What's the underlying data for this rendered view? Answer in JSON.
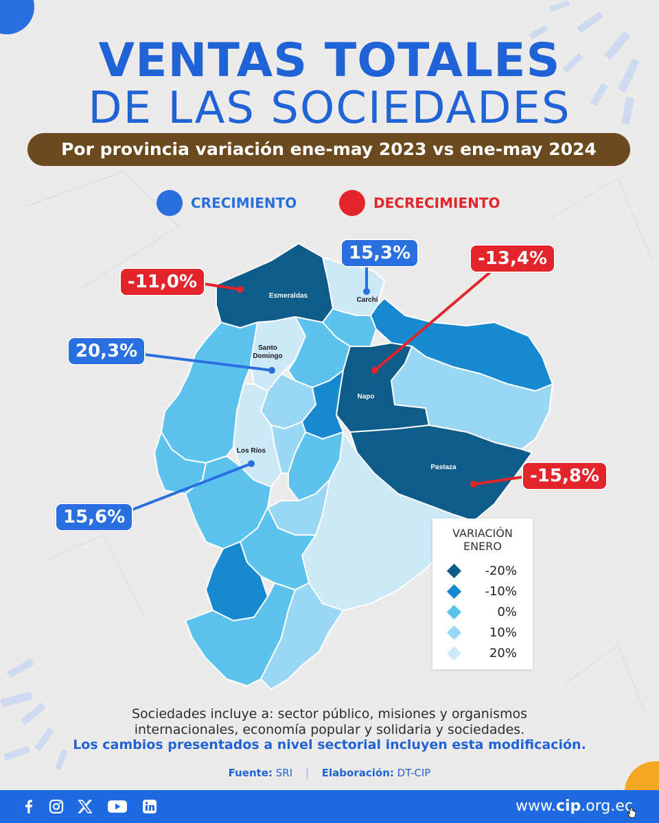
{
  "title": {
    "line1": "VENTAS TOTALES",
    "line2": "DE LAS SOCIEDADES",
    "subtitle": "Por provincia variación ene-may 2023 vs ene-may 2024"
  },
  "legend_top": {
    "growth": {
      "label": "CRECIMIENTO",
      "color": "#2a6fe0"
    },
    "decline": {
      "label": "DECRECIMIENTO",
      "color": "#e3242b"
    }
  },
  "map_labels": {
    "esmeraldas": "Esmeraldas",
    "carchi": "Carchi",
    "santo_domingo_1": "Santo",
    "santo_domingo_2": "Domingo",
    "napo": "Napo",
    "pastaza": "Pastaza",
    "los_rios": "Los Ríos"
  },
  "callouts": {
    "esmeraldas": {
      "province": "Esmeraldas",
      "value": "-11,0%",
      "trend": "decline"
    },
    "carchi": {
      "province": "Carchi",
      "value": "15,3%",
      "trend": "growth"
    },
    "napo": {
      "province": "Napo",
      "value": "-13,4%",
      "trend": "decline"
    },
    "santo_domingo": {
      "province": "Santo Domingo",
      "value": "20,3%",
      "trend": "growth"
    },
    "los_rios": {
      "province": "Los Ríos",
      "value": "15,6%",
      "trend": "growth"
    },
    "pastaza": {
      "province": "Pastaza",
      "value": "-15,8%",
      "trend": "decline"
    }
  },
  "scale_legend": {
    "title_line1": "VARIACIÓN",
    "title_line2": "ENERO",
    "items": [
      {
        "label": "-20%",
        "color": "#0d5c8a"
      },
      {
        "label": "-10%",
        "color": "#1789d0"
      },
      {
        "label": "0%",
        "color": "#5bc3ee"
      },
      {
        "label": "10%",
        "color": "#9ad7f4"
      },
      {
        "label": "20%",
        "color": "#cde9f8"
      }
    ]
  },
  "note": {
    "line1": "Sociedades incluye a: sector público, misiones y organismos",
    "line2": "internacionales, economía popular y solidaria y sociedades.",
    "bold": "Los cambios presentados a nivel sectorial incluyen esta modificación."
  },
  "source": {
    "label": "Fuente:",
    "value": "SRI",
    "elab_label": "Elaboración:",
    "elab_value": "DT-CIP"
  },
  "footer": {
    "social_icons": [
      "facebook-icon",
      "instagram-icon",
      "x-icon",
      "youtube-icon",
      "linkedin-icon"
    ],
    "website_prefix": "www.",
    "website_brand": "cip",
    "website_suffix": ".org.ec"
  }
}
